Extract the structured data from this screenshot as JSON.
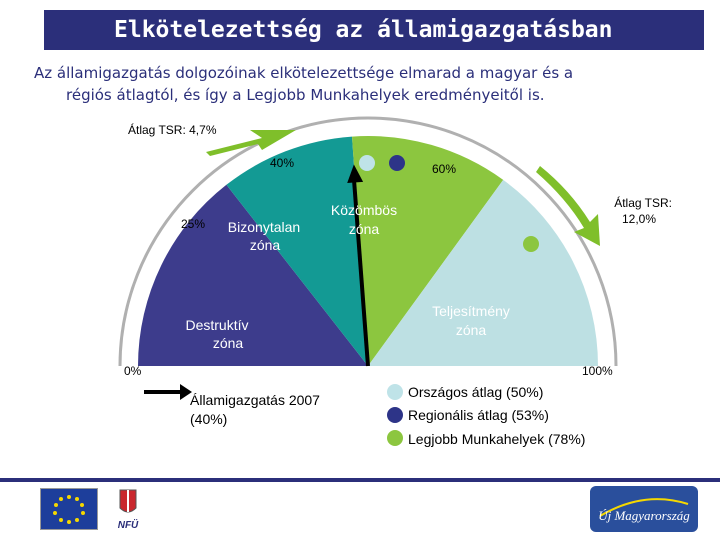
{
  "title": "Elkötelezettség az államigazgatásban",
  "subtitle": {
    "line1": "Az államigazgatás dolgozóinak elkötelezettsége elmarad a magyar és a",
    "line2": "régiós átlagtól, és így a Legjobb Munkahelyek eredményeitől is."
  },
  "gauge": {
    "avg_tsr_low": "Átlag TSR: 4,7%",
    "avg_tsr_high_line1": "Átlag TSR:",
    "avg_tsr_high_line2": "12,0%",
    "ticks": {
      "t0": "0%",
      "t25": "25%",
      "t40": "40%",
      "t60": "60%",
      "t100": "100%"
    },
    "zones": {
      "destructive_line1": "Destruktív",
      "destructive_line2": "zóna",
      "uncertain_line1": "Bizonytalan",
      "uncertain_line2": "zóna",
      "indifferent_line1": "Közömbös",
      "indifferent_line2": "zóna",
      "performance_line1": "Teljesítmény",
      "performance_line2": "zóna"
    },
    "needle_value_percent": 40,
    "markers_percent": {
      "national": 50,
      "regional": 53,
      "best": 78
    },
    "colors": {
      "destructive": "#3d3c8c",
      "uncertain": "#139a94",
      "indifferent": "#8cc63f",
      "performance": "#bde0e3",
      "arrow": "#7fbf2a",
      "national": "#bfe3e8",
      "regional": "#2d3488",
      "best": "#8cc63f"
    }
  },
  "legend": {
    "needle_line1": "Államigazgatás 2007",
    "needle_line2": "(40%)",
    "national": "Országos átlag (50%)",
    "regional": "Regionális átlag (53%)",
    "best": "Legjobb Munkahelyek (78%)"
  },
  "footer": {
    "eu_flag_icon": "eu-flag-icon",
    "nfu_logo": "NFÜ",
    "umo_logo": "Új Magyarország"
  }
}
